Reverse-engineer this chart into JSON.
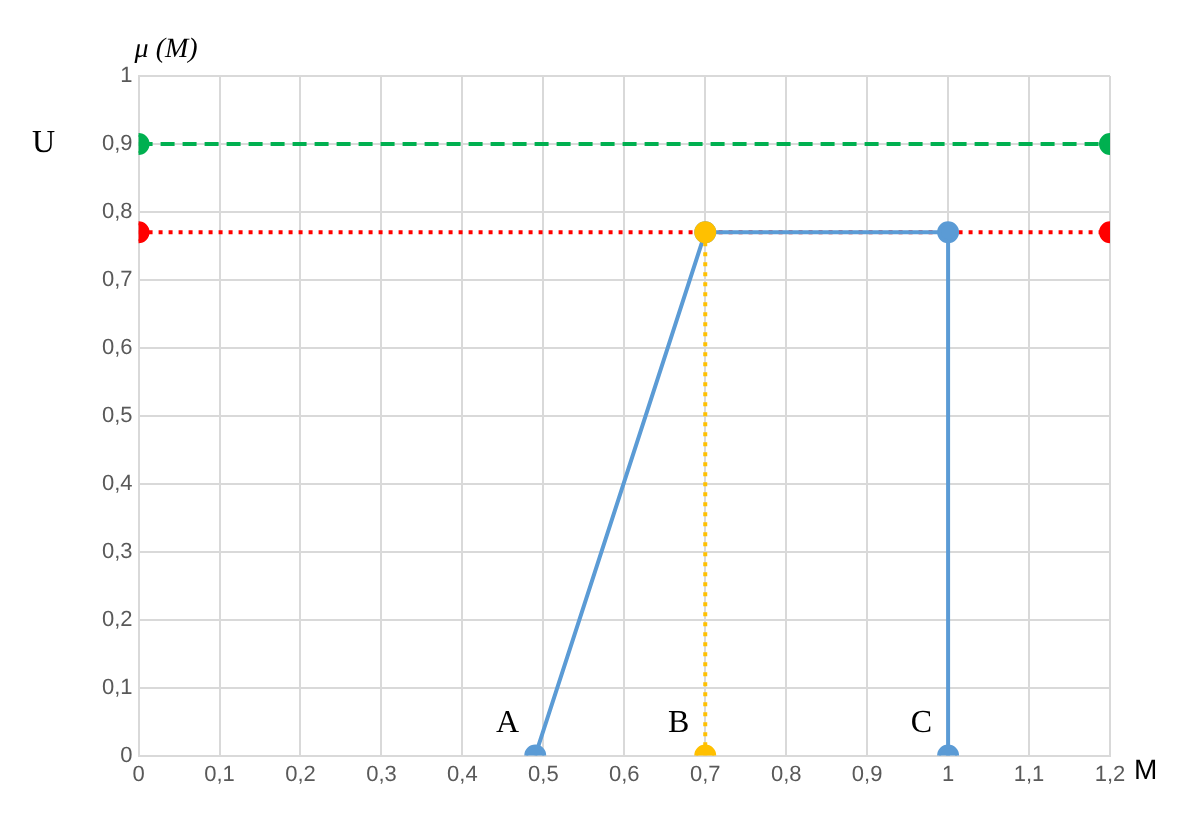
{
  "chart_data": {
    "type": "line",
    "ylabel": "μ (M)",
    "xlabel": "M",
    "xlim": [
      0,
      1.2
    ],
    "xticks": [
      0,
      {
        "value": 0.1,
        "label": "0,1"
      },
      {
        "value": 0.2,
        "label": "0,2"
      },
      {
        "value": 0.3,
        "label": "0,3"
      },
      {
        "value": 0.4,
        "label": "0,4"
      },
      {
        "value": 0.5,
        "label": "0,5"
      },
      {
        "value": 0.6,
        "label": "0,6"
      },
      {
        "value": 0.7,
        "label": "0,7"
      },
      {
        "value": 0.8,
        "label": "0,8"
      },
      {
        "value": 0.9,
        "label": "0,9"
      },
      1,
      {
        "value": 1.1,
        "label": "1,1"
      },
      {
        "value": 1.2,
        "label": "1,2"
      }
    ],
    "ylim": [
      0,
      1
    ],
    "yticks": [
      0,
      {
        "value": 0.1,
        "label": "0,1"
      },
      {
        "value": 0.2,
        "label": "0,2"
      },
      {
        "value": 0.3,
        "label": "0,3"
      },
      {
        "value": 0.4,
        "label": "0,4"
      },
      {
        "value": 0.5,
        "label": "0,5"
      },
      {
        "value": 0.6,
        "label": "0,6"
      },
      {
        "value": 0.7,
        "label": "0,7"
      },
      {
        "value": 0.8,
        "label": "0,8"
      },
      {
        "value": 0.9,
        "label": "0,9"
      },
      1
    ],
    "grid": true,
    "legend": false,
    "series": [
      {
        "color": "#00b050",
        "x": [
          0,
          1.2
        ],
        "values": [
          0.9,
          0.9
        ],
        "marker": "circle",
        "line_style": "dashed"
      },
      {
        "color": "#ff0000",
        "x": [
          0,
          1.2
        ],
        "values": [
          0.77,
          0.77
        ],
        "marker": "circle",
        "line_style": "dotted"
      },
      {
        "color": "#5b9bd5",
        "x": [
          0.49,
          0.7,
          1,
          1
        ],
        "values": [
          0,
          0.77,
          0.77,
          0
        ],
        "marker": "circle",
        "line_style": "solid"
      },
      {
        "color": "#ffc000",
        "x": [
          0.7,
          0.7
        ],
        "values": [
          0.77,
          0
        ],
        "marker": "circle",
        "line_style": "dotted"
      }
    ],
    "annotations": [
      "U",
      {
        "text": "A",
        "x": 0.49,
        "y": 0
      },
      {
        "text": "B",
        "x": 0.7,
        "y": 0
      },
      {
        "text": "C",
        "x": 1,
        "y": 0
      }
    ]
  }
}
